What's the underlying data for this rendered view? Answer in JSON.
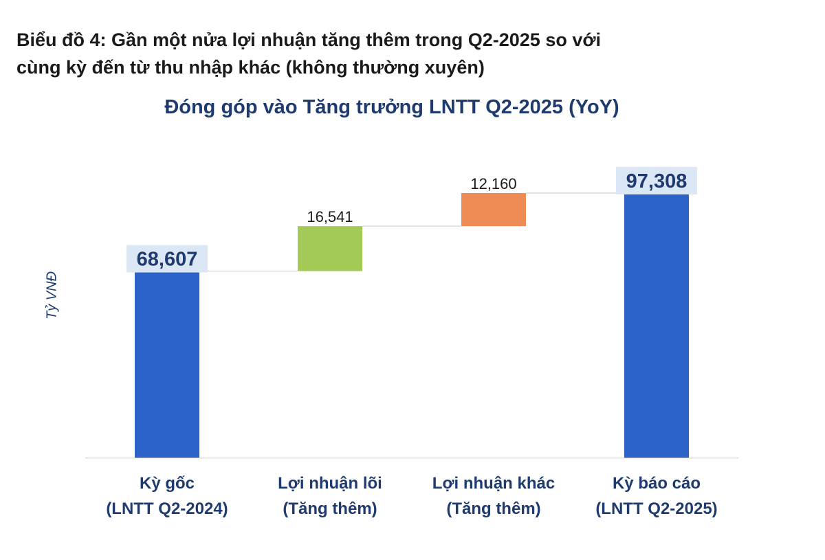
{
  "figure": {
    "title_line1": "Biểu đồ 4: Gần một nửa lợi nhuận tăng thêm trong Q2-2025 so với",
    "title_line2": "cùng kỳ đến từ thu nhập khác (không thường xuyên)"
  },
  "chart_data": {
    "type": "waterfall",
    "title": "Đóng góp vào Tăng trưởng LNTT Q2-2025 (YoY)",
    "ylabel": "Tỷ VNĐ",
    "xlabel": "",
    "ylim": [
      0,
      100000
    ],
    "grid": false,
    "categories": [
      {
        "line1": "Kỳ gốc",
        "line2": "(LNTT Q2-2024)"
      },
      {
        "line1": "Lợi nhuận lõi",
        "line2": "(Tăng thêm)"
      },
      {
        "line1": "Lợi nhuận khác",
        "line2": "(Tăng thêm)"
      },
      {
        "line1": "Kỳ báo cáo",
        "line2": "(LNTT Q2-2025)"
      }
    ],
    "bars": [
      {
        "kind": "total",
        "value": 68607,
        "label": "68,607",
        "color": "#2b63c9"
      },
      {
        "kind": "increase",
        "value": 16541,
        "label": "16,541",
        "color": "#a3c957"
      },
      {
        "kind": "increase",
        "value": 12160,
        "label": "12,160",
        "color": "#ef8c55"
      },
      {
        "kind": "total",
        "value": 97308,
        "label": "97,308",
        "color": "#2b63c9"
      }
    ]
  }
}
